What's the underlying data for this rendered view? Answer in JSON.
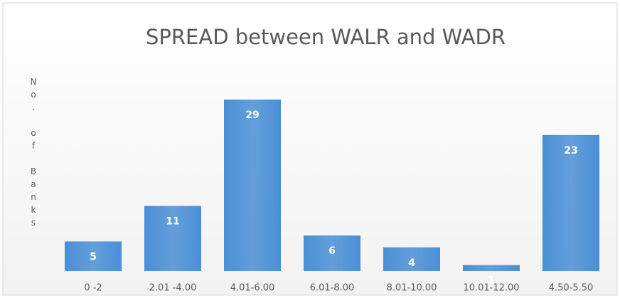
{
  "chart_data": {
    "type": "bar",
    "title": "SPREAD between WALR and WADR",
    "y_label": "No. of Banks",
    "categories": [
      "0 -2",
      "2.01 -4.00",
      "4.01-6.00",
      "6.01-8.00",
      "8.01-10.00",
      "10.01-12.00",
      "4.50-5.50"
    ],
    "values": [
      5,
      11,
      29,
      6,
      4,
      1,
      23
    ],
    "color": "#4a8fd6"
  }
}
